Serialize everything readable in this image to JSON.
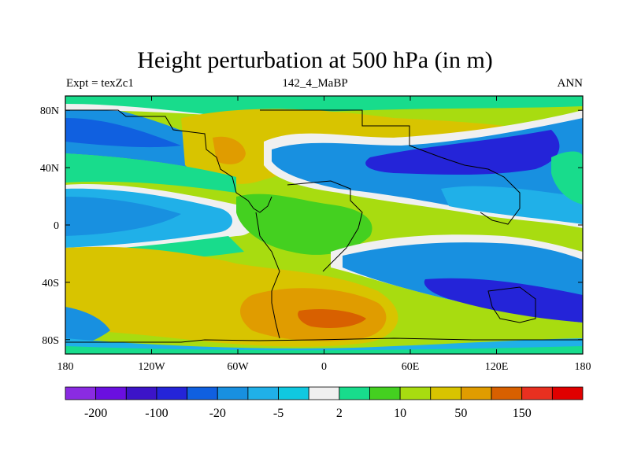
{
  "title": "Height perturbation at 500 hPa (in m)",
  "subtitle_left": "Expt = texZc1",
  "subtitle_center": "142_4_MaBP",
  "subtitle_right": "ANN",
  "map": {
    "projection": "cylindrical equidistant",
    "lon_range": [
      -180,
      180
    ],
    "lat_range": [
      -90,
      90
    ],
    "x_ticks": [
      {
        "value": -180,
        "label": "180"
      },
      {
        "value": -120,
        "label": "120W"
      },
      {
        "value": -60,
        "label": "60W"
      },
      {
        "value": 0,
        "label": "0"
      },
      {
        "value": 60,
        "label": "60E"
      },
      {
        "value": 120,
        "label": "120E"
      },
      {
        "value": 180,
        "label": "180"
      }
    ],
    "y_ticks": [
      {
        "value": 80,
        "label": "80N"
      },
      {
        "value": 40,
        "label": "40N"
      },
      {
        "value": 0,
        "label": "0"
      },
      {
        "value": -40,
        "label": "40S"
      },
      {
        "value": -80,
        "label": "80S"
      }
    ]
  },
  "colorbar": {
    "colors": [
      "#8a2be2",
      "#6a0fe0",
      "#3c14c8",
      "#2424d8",
      "#1060e0",
      "#1890e0",
      "#20b0e8",
      "#10c8e0",
      "#f0f0f0",
      "#18dc8c",
      "#44d020",
      "#a8dc10",
      "#d8c400",
      "#e09c00",
      "#d86000",
      "#e83020",
      "#e00000"
    ],
    "labels": [
      {
        "label": "-200",
        "index": 1
      },
      {
        "label": "-100",
        "index": 3
      },
      {
        "label": "-20",
        "index": 5
      },
      {
        "label": "-5",
        "index": 7
      },
      {
        "label": "2",
        "index": 9
      },
      {
        "label": "10",
        "index": 11
      },
      {
        "label": "50",
        "index": 13
      },
      {
        "label": "150",
        "index": 15
      }
    ]
  }
}
